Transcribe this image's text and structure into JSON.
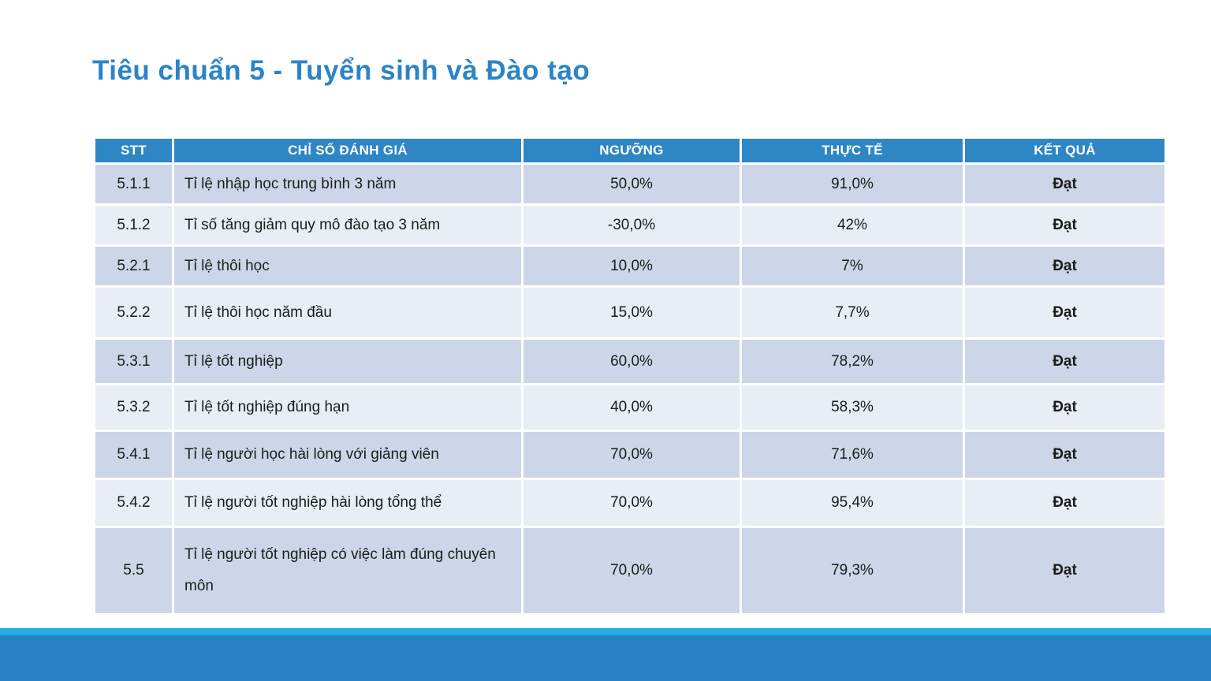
{
  "slide": {
    "title": "Tiêu chuẩn 5 - Tuyển sinh và Đào tạo"
  },
  "table": {
    "headers": [
      "STT",
      "CHỈ SỐ ĐÁNH GIÁ",
      "NGƯỠNG",
      "THỰC TẾ",
      "KẾT QUẢ"
    ],
    "rows": [
      {
        "stt": "5.1.1",
        "indicator": "Tỉ lệ nhập học trung bình 3 năm",
        "threshold": "50,0%",
        "actual": "91,0%",
        "result": "Đạt"
      },
      {
        "stt": "5.1.2",
        "indicator": "Tỉ số tăng giảm quy mô đào tạo 3 năm",
        "threshold": "-30,0%",
        "actual": "42%",
        "result": "Đạt"
      },
      {
        "stt": "5.2.1",
        "indicator": "Tỉ lệ thôi học",
        "threshold": "10,0%",
        "actual": "7%",
        "result": "Đạt"
      },
      {
        "stt": "5.2.2",
        "indicator": "Tỉ lệ thôi học năm đầu",
        "threshold": "15,0%",
        "actual": "7,7%",
        "result": "Đạt"
      },
      {
        "stt": "5.3.1",
        "indicator": "Tỉ lệ tốt nghiệp",
        "threshold": "60,0%",
        "actual": "78,2%",
        "result": "Đạt"
      },
      {
        "stt": "5.3.2",
        "indicator": "Tỉ lệ tốt nghiệp  đúng hạn",
        "threshold": "40,0%",
        "actual": "58,3%",
        "result": "Đạt"
      },
      {
        "stt": "5.4.1",
        "indicator": "Tỉ lệ người học hài lòng với giảng viên",
        "threshold": "70,0%",
        "actual": "71,6%",
        "result": "Đạt"
      },
      {
        "stt": "5.4.2",
        "indicator": "Tỉ lệ người tốt nghiệp  hài lòng tổng thể",
        "threshold": "70,0%",
        "actual": "95,4%",
        "result": "Đạt"
      },
      {
        "stt": "5.5",
        "indicator": "Tỉ lệ người  tốt nghiệp  có việc làm đúng chuyên môn",
        "threshold": "70,0%",
        "actual": "79,3%",
        "result": "Đạt"
      }
    ]
  },
  "colors": {
    "title_blue": "#2B84C6",
    "header_bg": "#2E86C4",
    "row_odd": "#CCD6E8",
    "row_even": "#E9EDF5",
    "footer_stripe": "#22ADE4",
    "footer_bar": "#2A80C3"
  }
}
